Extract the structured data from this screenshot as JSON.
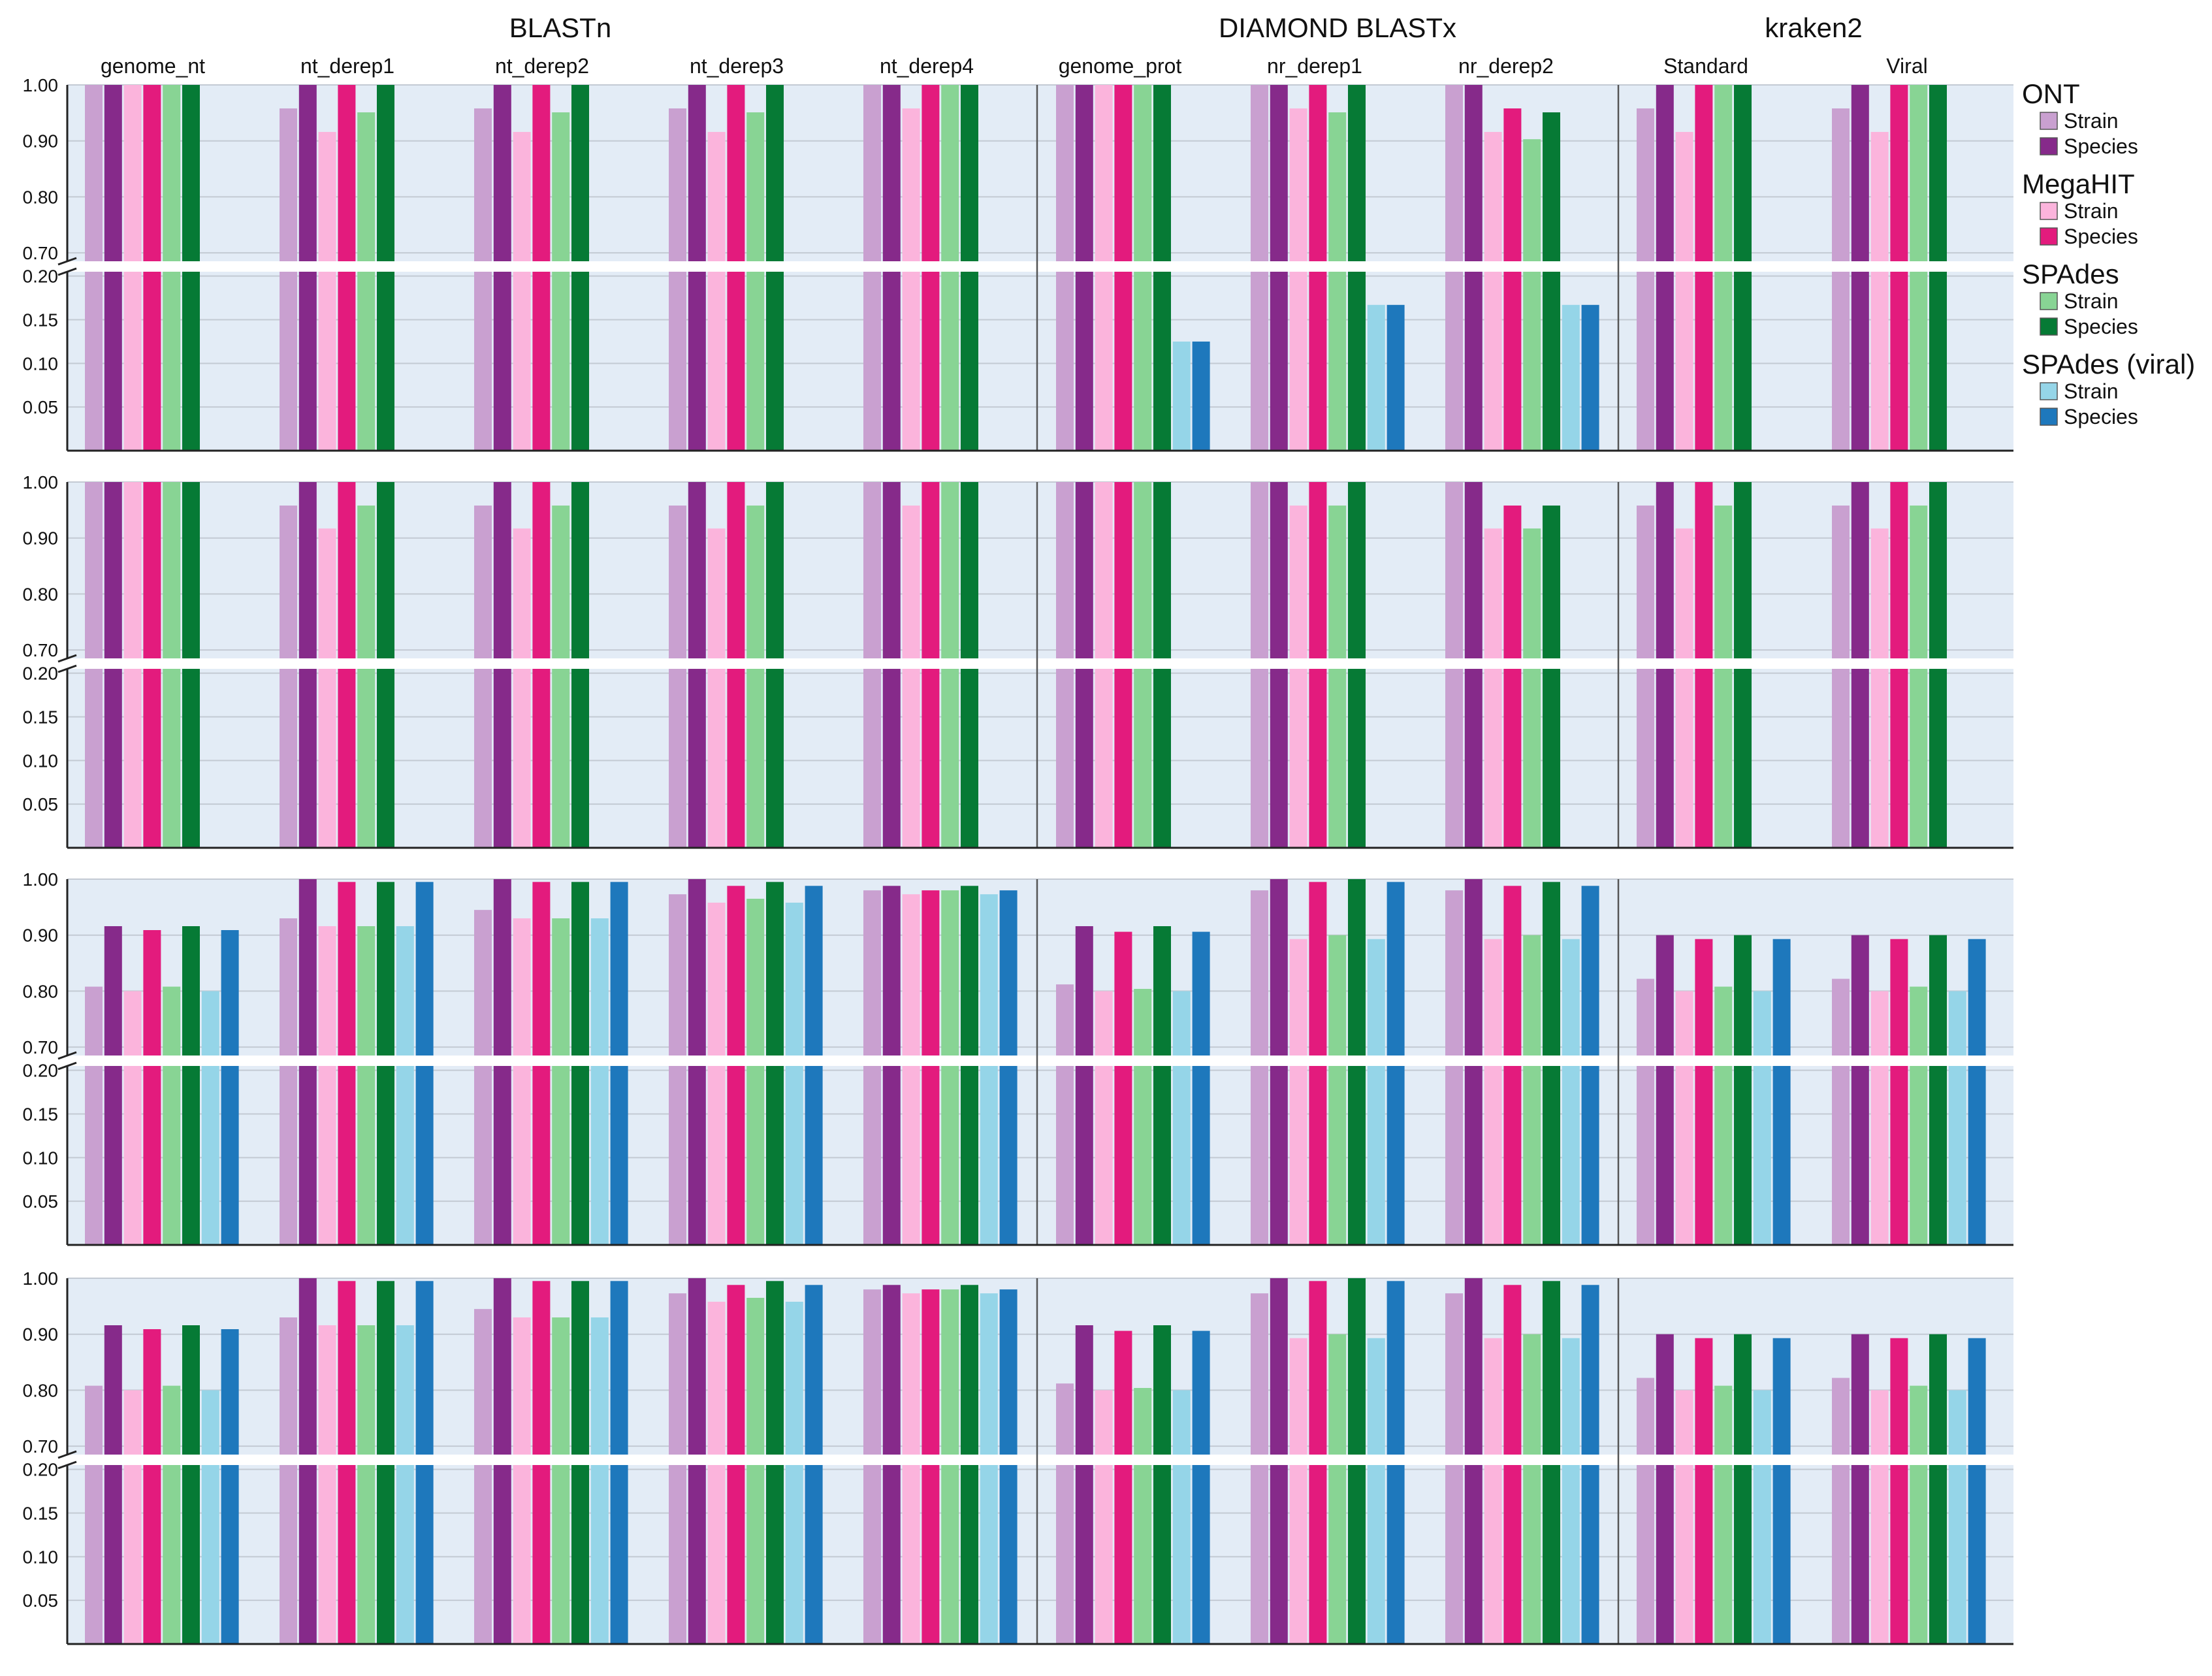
{
  "chart_data": {
    "type": "bar",
    "broken_axis": true,
    "yticks_upper": [
      "1.00",
      "0.90",
      "0.80",
      "0.70"
    ],
    "yticks_lower": [
      "0.20",
      "0.15",
      "0.10",
      "0.05"
    ],
    "upper_range": [
      0.685,
      1.0
    ],
    "lower_range": [
      0,
      0.205
    ],
    "tools": [
      {
        "name": "BLASTn",
        "groups": [
          "genome_nt",
          "nt_derep1",
          "nt_derep2",
          "nt_derep3",
          "nt_derep4"
        ]
      },
      {
        "name": "DIAMOND BLASTx",
        "groups": [
          "genome_prot",
          "nr_derep1",
          "nr_derep2"
        ]
      },
      {
        "name": "kraken2",
        "groups": [
          "Standard",
          "Viral"
        ]
      }
    ],
    "legend": [
      {
        "title": "ONT",
        "entries": [
          {
            "label": "Strain",
            "color": "#c9a0d0"
          },
          {
            "label": "Species",
            "color": "#862a8a"
          }
        ]
      },
      {
        "title": "MegaHIT",
        "entries": [
          {
            "label": "Strain",
            "color": "#fbb4dc"
          },
          {
            "label": "Species",
            "color": "#e31b7d"
          }
        ]
      },
      {
        "title": "SPAdes",
        "entries": [
          {
            "label": "Strain",
            "color": "#88d494"
          },
          {
            "label": "Species",
            "color": "#067a35"
          }
        ]
      },
      {
        "title": "SPAdes (viral)",
        "entries": [
          {
            "label": "Strain",
            "color": "#95d5e8"
          },
          {
            "label": "Species",
            "color": "#1e78bc"
          }
        ]
      }
    ],
    "series_colors": [
      "#c9a0d0",
      "#862a8a",
      "#fbb4dc",
      "#e31b7d",
      "#88d494",
      "#067a35",
      "#95d5e8",
      "#1e78bc"
    ],
    "panels": [
      {
        "values": [
          [
            1.0,
            1.0,
            1.0,
            1.0,
            1.0,
            1.0,
            null,
            null
          ],
          [
            0.958,
            1.0,
            0.916,
            1.0,
            0.951,
            1.0,
            null,
            null
          ],
          [
            0.958,
            1.0,
            0.916,
            1.0,
            0.951,
            1.0,
            null,
            null
          ],
          [
            0.958,
            1.0,
            0.916,
            1.0,
            0.951,
            1.0,
            null,
            null
          ],
          [
            1.0,
            1.0,
            0.958,
            1.0,
            1.0,
            1.0,
            null,
            null
          ],
          [
            1.0,
            1.0,
            1.0,
            1.0,
            1.0,
            1.0,
            0.125,
            0.125
          ],
          [
            1.0,
            1.0,
            0.958,
            1.0,
            0.951,
            1.0,
            0.167,
            0.167
          ],
          [
            1.0,
            1.0,
            0.916,
            0.958,
            0.903,
            0.951,
            0.167,
            0.167
          ],
          [
            0.958,
            1.0,
            0.916,
            1.0,
            1.0,
            1.0,
            null,
            null
          ],
          [
            0.958,
            1.0,
            0.916,
            1.0,
            1.0,
            1.0,
            null,
            null
          ]
        ]
      },
      {
        "values": [
          [
            1.0,
            1.0,
            1.0,
            1.0,
            1.0,
            1.0,
            null,
            null
          ],
          [
            0.958,
            1.0,
            0.917,
            1.0,
            0.958,
            1.0,
            null,
            null
          ],
          [
            0.958,
            1.0,
            0.917,
            1.0,
            0.958,
            1.0,
            null,
            null
          ],
          [
            0.958,
            1.0,
            0.917,
            1.0,
            0.958,
            1.0,
            null,
            null
          ],
          [
            1.0,
            1.0,
            0.958,
            1.0,
            1.0,
            1.0,
            null,
            null
          ],
          [
            1.0,
            1.0,
            1.0,
            1.0,
            1.0,
            1.0,
            null,
            null
          ],
          [
            1.0,
            1.0,
            0.958,
            1.0,
            0.958,
            1.0,
            null,
            null
          ],
          [
            1.0,
            1.0,
            0.917,
            0.958,
            0.917,
            0.958,
            null,
            null
          ],
          [
            0.958,
            1.0,
            0.917,
            1.0,
            0.958,
            1.0,
            null,
            null
          ],
          [
            0.958,
            1.0,
            0.917,
            1.0,
            0.958,
            1.0,
            null,
            null
          ]
        ]
      },
      {
        "values": [
          [
            0.808,
            0.916,
            0.8,
            0.909,
            0.808,
            0.916,
            0.8,
            0.909
          ],
          [
            0.93,
            1.0,
            0.916,
            0.995,
            0.916,
            0.995,
            0.916,
            0.995
          ],
          [
            0.945,
            1.0,
            0.93,
            0.995,
            0.93,
            0.995,
            0.93,
            0.995
          ],
          [
            0.973,
            1.0,
            0.958,
            0.988,
            0.965,
            0.995,
            0.958,
            0.988
          ],
          [
            0.98,
            0.988,
            0.973,
            0.98,
            0.98,
            0.988,
            0.973,
            0.98
          ],
          [
            0.812,
            0.916,
            0.8,
            0.906,
            0.804,
            0.916,
            0.8,
            0.906
          ],
          [
            0.98,
            1.0,
            0.893,
            0.995,
            0.9,
            1.0,
            0.893,
            0.995
          ],
          [
            0.98,
            1.0,
            0.893,
            0.988,
            0.9,
            0.995,
            0.893,
            0.988
          ],
          [
            0.822,
            0.9,
            0.8,
            0.893,
            0.808,
            0.9,
            0.8,
            0.893
          ],
          [
            0.822,
            0.9,
            0.8,
            0.893,
            0.808,
            0.9,
            0.8,
            0.893
          ]
        ]
      },
      {
        "values": [
          [
            0.808,
            0.916,
            0.8,
            0.909,
            0.808,
            0.916,
            0.8,
            0.909
          ],
          [
            0.93,
            1.0,
            0.916,
            0.995,
            0.916,
            0.995,
            0.916,
            0.995
          ],
          [
            0.945,
            1.0,
            0.93,
            0.995,
            0.93,
            0.995,
            0.93,
            0.995
          ],
          [
            0.973,
            1.0,
            0.958,
            0.988,
            0.965,
            0.995,
            0.958,
            0.988
          ],
          [
            0.98,
            0.988,
            0.973,
            0.98,
            0.98,
            0.988,
            0.973,
            0.98
          ],
          [
            0.812,
            0.916,
            0.8,
            0.906,
            0.804,
            0.916,
            0.8,
            0.906
          ],
          [
            0.973,
            1.0,
            0.893,
            0.995,
            0.9,
            1.0,
            0.893,
            0.995
          ],
          [
            0.973,
            1.0,
            0.893,
            0.988,
            0.9,
            0.995,
            0.893,
            0.988
          ],
          [
            0.822,
            0.9,
            0.8,
            0.893,
            0.808,
            0.9,
            0.8,
            0.893
          ],
          [
            0.822,
            0.9,
            0.8,
            0.893,
            0.808,
            0.9,
            0.8,
            0.893
          ]
        ]
      }
    ]
  }
}
